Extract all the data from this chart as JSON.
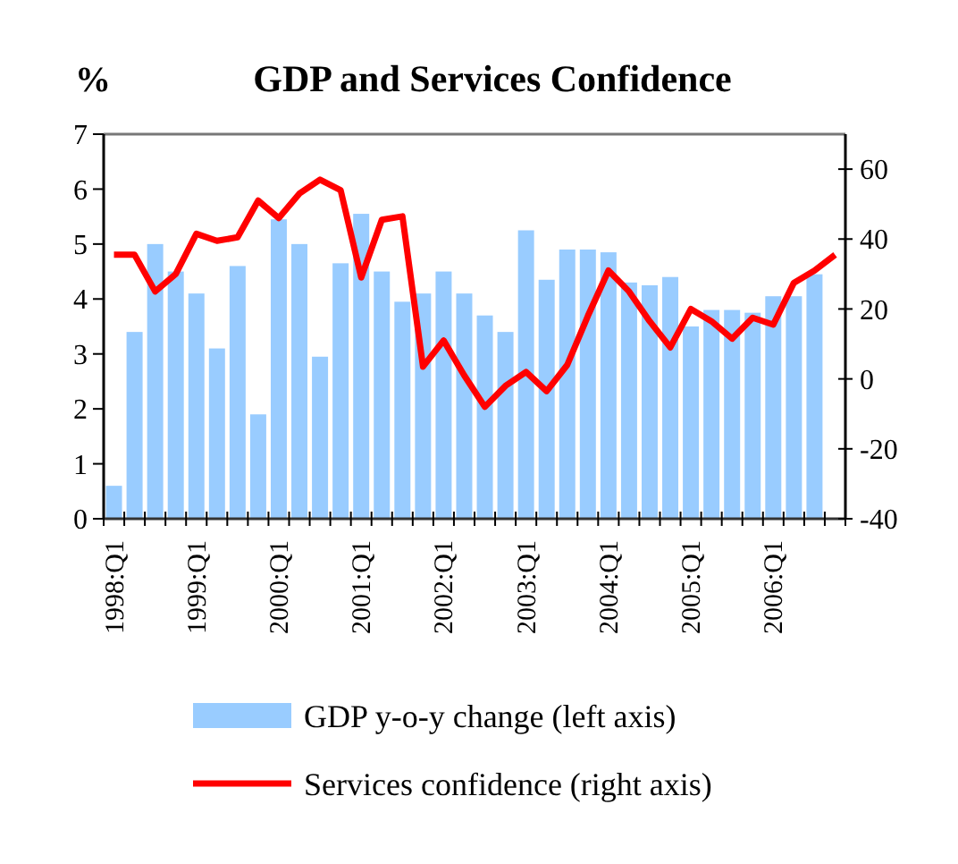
{
  "chart_data": {
    "type": "bar",
    "title": "GDP and Services Confidence",
    "ylabel": "%",
    "categories": [
      "1998:Q1",
      null,
      null,
      null,
      "1999:Q1",
      null,
      null,
      null,
      "2000:Q1",
      null,
      null,
      null,
      "2001:Q1",
      null,
      null,
      null,
      "2002:Q1",
      null,
      null,
      null,
      "2003:Q1",
      null,
      null,
      null,
      "2004:Q1",
      null,
      null,
      null,
      "2005:Q1",
      null,
      null,
      null,
      "2006:Q1",
      null,
      null,
      null
    ],
    "series": [
      {
        "name": "GDP y-o-y change (left axis)",
        "color": "#99ccff",
        "values": [
          0.6,
          3.4,
          5.0,
          4.5,
          4.1,
          3.1,
          4.6,
          1.9,
          5.45,
          5.0,
          2.95,
          4.65,
          5.55,
          4.5,
          3.95,
          4.1,
          4.5,
          4.1,
          3.7,
          3.4,
          5.25,
          4.35,
          4.9,
          4.9,
          4.85,
          4.3,
          4.25,
          4.4,
          3.5,
          3.8,
          3.8,
          3.75,
          4.05,
          4.05,
          4.45,
          null
        ]
      },
      {
        "name": "Services confidence (right axis)",
        "type": "line",
        "axis": "y2",
        "color": "#ff0000",
        "values": [
          35.5,
          35.5,
          25,
          30,
          41.5,
          39.5,
          40.5,
          51,
          46,
          53,
          57,
          54,
          29,
          45.5,
          46.5,
          3.5,
          11,
          1,
          -8,
          -2,
          2,
          -3.5,
          4,
          18,
          31,
          25,
          16.5,
          9,
          20,
          16.5,
          11.5,
          17.5,
          15.5,
          27.5,
          31,
          35.5
        ]
      }
    ],
    "ylim": [
      0,
      7
    ],
    "yticks": [
      0,
      1,
      2,
      3,
      4,
      5,
      6,
      7
    ],
    "y2lim": [
      -40,
      70
    ],
    "y2ticks": [
      -40,
      -20,
      0,
      20,
      40,
      60
    ],
    "grid": false,
    "legend": "bottom",
    "marker": "none",
    "line_style": "solid"
  }
}
